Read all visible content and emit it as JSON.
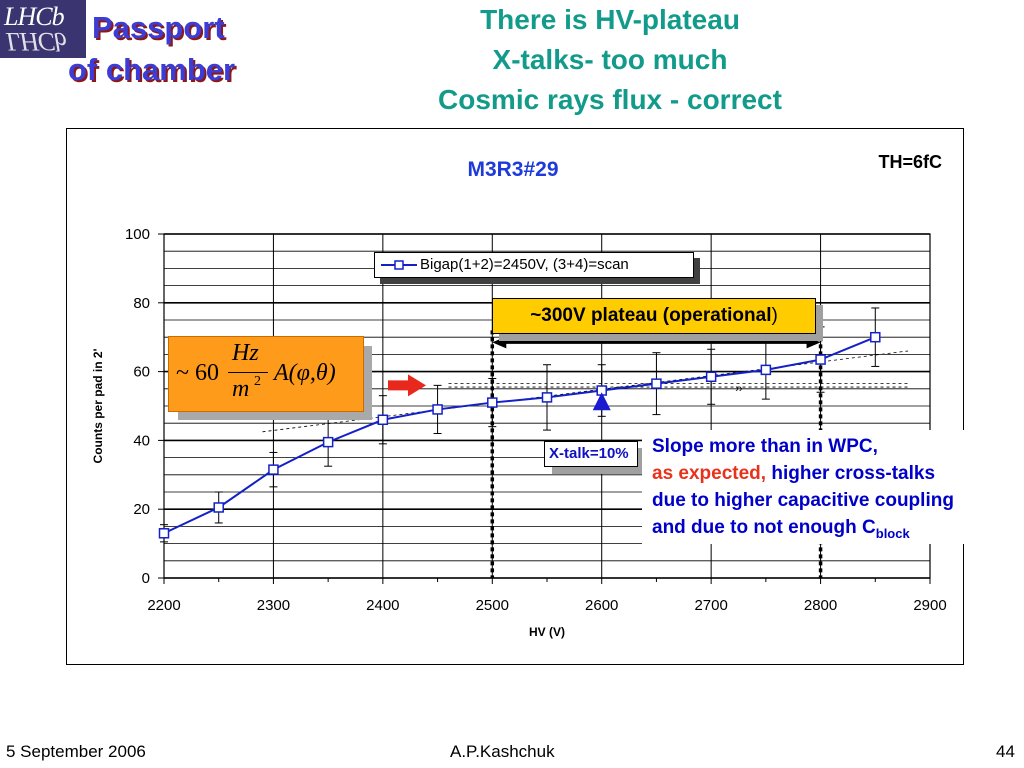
{
  "header": {
    "logo_line1": "LHCb",
    "logo_line2": "LHCb",
    "passport_line1": "Passport",
    "passport_line2": "of chamber",
    "title_lines": [
      "There is HV-plateau",
      "X-talks- too much",
      "Cosmic rays flux - correct"
    ]
  },
  "chart_data": {
    "type": "line",
    "title": "M3R3#29",
    "corner_label": "TH=6fC",
    "xlabel": "HV (V)",
    "ylabel": "Counts  per pad in 2'",
    "xlim": [
      2200,
      2900
    ],
    "ylim": [
      0,
      100
    ],
    "x_ticks": [
      2200,
      2300,
      2400,
      2500,
      2600,
      2700,
      2800,
      2900
    ],
    "y_ticks": [
      0,
      20,
      40,
      60,
      80,
      100
    ],
    "grid": true,
    "legend_position": "top-center",
    "series": [
      {
        "name": "Bigap(1+2)=2450V, (3+4)=scan",
        "color": "#1420c8",
        "x": [
          2200,
          2250,
          2300,
          2350,
          2400,
          2450,
          2500,
          2550,
          2600,
          2650,
          2700,
          2750,
          2800,
          2850
        ],
        "y": [
          13,
          20.5,
          31.5,
          39.5,
          46,
          49,
          51,
          52.5,
          54.5,
          56.5,
          58.5,
          60.5,
          63.5,
          70
        ],
        "err": [
          2.5,
          4.5,
          5,
          7,
          7,
          7,
          7,
          9.5,
          7.5,
          9,
          8,
          8.5,
          9.5,
          8.5
        ]
      }
    ],
    "plateau_markers_x": [
      2500,
      2800
    ],
    "xtalk_marker_x": 2600
  },
  "annotations": {
    "plateau_prefix": "~",
    "plateau_label": "300V plateau (operational",
    "plateau_suffix": ")",
    "xtalk_label": "X-talk=10%",
    "formula_prefix": "~ 60",
    "formula_num": "Hz",
    "formula_den_base": "m",
    "formula_den_exp": "2",
    "formula_func": "A(φ,θ)",
    "note_line1": "Slope more than in WPC,",
    "note_line2_red": "as expected,",
    "note_line2_blue": " higher cross-talks",
    "note_line3": "due to higher capacitive coupling",
    "note_line4": "and due to not enough C",
    "note_line4_sub": "block"
  },
  "footer": {
    "date": "5 September 2006",
    "author": "A.P.Kashchuk",
    "page": "44"
  },
  "colors": {
    "title": "#129b8a",
    "series": "#1420c8",
    "plateau_box": "#ffcc00",
    "formula_box": "#ff9b1a",
    "arrow_red": "#e8281c",
    "arrow_blue": "#1a1ad0"
  }
}
